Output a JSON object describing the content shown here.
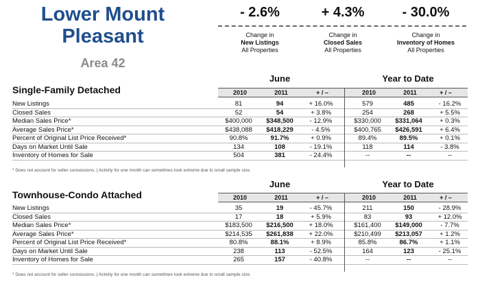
{
  "header": {
    "title_line1": "Lower Mount",
    "title_line2": "Pleasant",
    "area": "Area 42"
  },
  "stats": [
    {
      "value": "- 2.6%",
      "line1": "Change in",
      "line2": "New Listings",
      "line3": "All Properties"
    },
    {
      "value": "+ 4.3%",
      "line1": "Change in",
      "line2": "Closed Sales",
      "line3": "All Properties"
    },
    {
      "value": "- 30.0%",
      "line1": "Change in",
      "line2": "Inventory of Homes",
      "line3": "All Properties"
    }
  ],
  "period_june": "June",
  "period_ytd": "Year to Date",
  "columns": [
    "2010",
    "2011",
    "+ / –",
    "2010",
    "2011",
    "+ / –"
  ],
  "sections": [
    {
      "title": "Single-Family Detached",
      "rows": [
        [
          "New Listings",
          "81",
          "94",
          "+ 16.0%",
          "579",
          "485",
          "- 16.2%"
        ],
        [
          "Closed Sales",
          "52",
          "54",
          "+ 3.8%",
          "254",
          "268",
          "+ 5.5%"
        ],
        [
          "Median Sales Price*",
          "$400,000",
          "$348,500",
          "- 12.9%",
          "$330,000",
          "$331,064",
          "+ 0.3%"
        ],
        [
          "Average Sales Price*",
          "$438,088",
          "$418,229",
          "- 4.5%",
          "$400,765",
          "$426,591",
          "+ 6.4%"
        ],
        [
          "Percent of Original List Price Received*",
          "90.8%",
          "91.7%",
          "+ 0.9%",
          "89.4%",
          "89.5%",
          "+ 0.1%"
        ],
        [
          "Days on Market Until Sale",
          "134",
          "108",
          "- 19.1%",
          "118",
          "114",
          "- 3.8%"
        ],
        [
          "Inventory of Homes for Sale",
          "504",
          "381",
          "- 24.4%",
          "--",
          "--",
          "--"
        ]
      ],
      "note": "* Does not account for seller concessions.  |  Activity for one month can sometimes look extreme due to small sample size."
    },
    {
      "title": "Townhouse-Condo Attached",
      "rows": [
        [
          "New Listings",
          "35",
          "19",
          "- 45.7%",
          "211",
          "150",
          "- 28.9%"
        ],
        [
          "Closed Sales",
          "17",
          "18",
          "+ 5.9%",
          "83",
          "93",
          "+ 12.0%"
        ],
        [
          "Median Sales Price*",
          "$183,500",
          "$216,500",
          "+ 18.0%",
          "$161,400",
          "$149,000",
          "- 7.7%"
        ],
        [
          "Average Sales Price*",
          "$214,535",
          "$261,838",
          "+ 22.0%",
          "$210,499",
          "$213,057",
          "+ 1.2%"
        ],
        [
          "Percent of Original List Price Received*",
          "80.8%",
          "88.1%",
          "+ 8.9%",
          "85.8%",
          "86.7%",
          "+ 1.1%"
        ],
        [
          "Days on Market Until Sale",
          "238",
          "113",
          "- 52.5%",
          "164",
          "123",
          "- 25.1%"
        ],
        [
          "Inventory of Homes for Sale",
          "265",
          "157",
          "- 40.8%",
          "--",
          "--",
          "--"
        ]
      ],
      "note": "* Does not account for seller concessions.  |  Activity for one month can sometimes look extreme due to small sample size."
    }
  ]
}
